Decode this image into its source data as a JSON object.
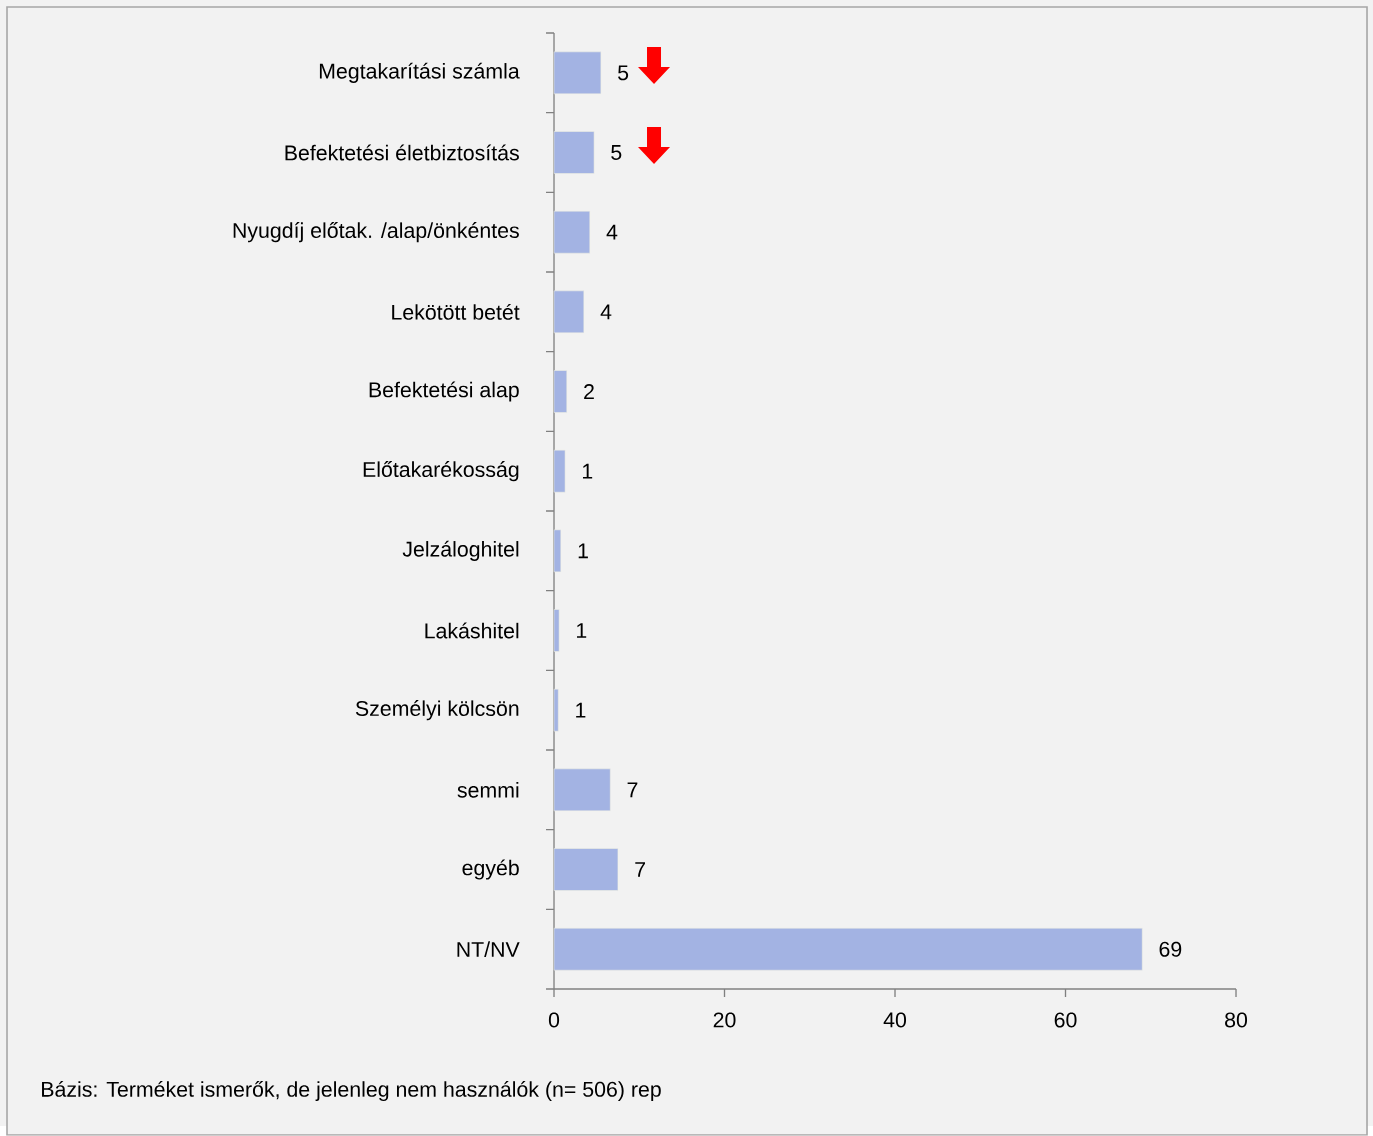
{
  "chart_data": {
    "type": "bar",
    "orientation": "horizontal",
    "categories": [
      "Megtakarítási számla",
      "Befektetési életbiztosítás",
      "Nyugdíj előtak. /alap/önkéntes",
      "Lekötött betét",
      "Befektetési alap",
      "Előtakarékosság",
      "Jelzáloghitel",
      "Lakáshitel",
      "Személyi kölcsön",
      "semmi",
      "egyéb",
      "NT/NV"
    ],
    "values": [
      5.5,
      4.7,
      4.2,
      3.5,
      1.5,
      1.3,
      0.8,
      0.6,
      0.5,
      6.6,
      7.5,
      69.0
    ],
    "value_labels": [
      "5",
      "5",
      "4",
      "4",
      "2",
      "1",
      "1",
      "1",
      "1",
      "7",
      "7",
      "69"
    ],
    "color": "#a3b3e3",
    "xlim": [
      0,
      80
    ],
    "xticks": [
      0,
      20,
      40,
      60,
      80
    ],
    "annotations": [
      "Bázis: Terméket ismerők, de jelenleg nem használók (n= 506) rep"
    ]
  }
}
